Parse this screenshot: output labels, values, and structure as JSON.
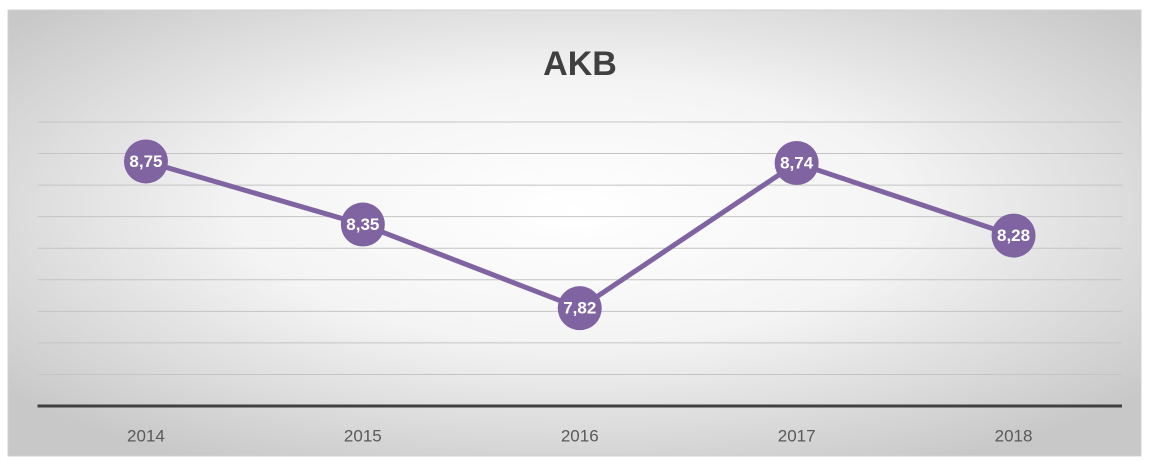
{
  "chart_data": {
    "type": "line",
    "title": "AKB",
    "categories": [
      "2014",
      "2015",
      "2016",
      "2017",
      "2018"
    ],
    "series": [
      {
        "name": "AKB",
        "color": "#8064a2",
        "values": [
          8.75,
          8.35,
          7.82,
          8.74,
          8.28
        ],
        "value_labels": [
          "8,75",
          "8,35",
          "7,82",
          "8,74",
          "8,28"
        ]
      }
    ],
    "ylim": [
      7.2,
      9.0
    ],
    "yticks": [
      7.4,
      7.6,
      7.8,
      8.0,
      8.2,
      8.4,
      8.6,
      8.8,
      9.0
    ],
    "grid": true
  }
}
